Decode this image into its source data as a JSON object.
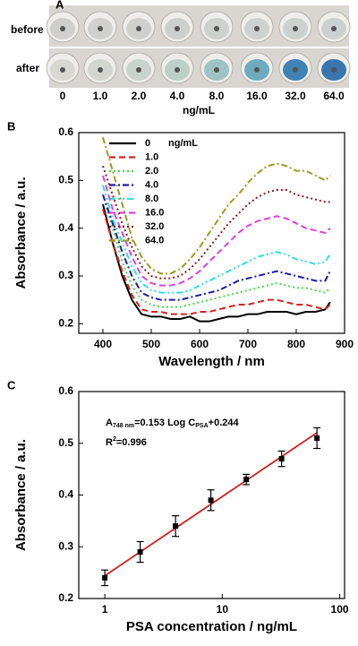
{
  "photo": {
    "panel_label": "A",
    "rows": [
      "before",
      "after"
    ],
    "concentrations": [
      "0",
      "1.0",
      "2.0",
      "4.0",
      "8.0",
      "16.0",
      "32.0",
      "64.0"
    ],
    "unit": "ng/mL"
  },
  "chart_data": [
    {
      "type": "line",
      "panel_label": "B",
      "x_label": "Wavelength / nm",
      "y_label": "Absorbance / a.u.",
      "legend_title": "ng/mL",
      "x": [
        400,
        420,
        440,
        460,
        480,
        500,
        520,
        540,
        560,
        580,
        600,
        620,
        640,
        660,
        680,
        700,
        720,
        740,
        760,
        780,
        800,
        820,
        840,
        860,
        870
      ],
      "xlim": [
        350,
        900
      ],
      "xticks": [
        400,
        500,
        600,
        700,
        800,
        900
      ],
      "ylim": [
        0.18,
        0.6
      ],
      "yticks": [
        0.2,
        0.3,
        0.4,
        0.5,
        0.6
      ],
      "series": [
        {
          "name": "0",
          "color": "#000000",
          "dash": "solid",
          "values": [
            0.45,
            0.37,
            0.3,
            0.25,
            0.22,
            0.215,
            0.215,
            0.21,
            0.21,
            0.215,
            0.205,
            0.205,
            0.21,
            0.215,
            0.215,
            0.22,
            0.22,
            0.225,
            0.225,
            0.225,
            0.22,
            0.225,
            0.225,
            0.23,
            0.245
          ]
        },
        {
          "name": "1.0",
          "color": "#d62020",
          "dash": "dash",
          "values": [
            0.44,
            0.37,
            0.31,
            0.26,
            0.23,
            0.225,
            0.225,
            0.22,
            0.22,
            0.22,
            0.225,
            0.225,
            0.23,
            0.235,
            0.24,
            0.24,
            0.245,
            0.25,
            0.25,
            0.245,
            0.24,
            0.24,
            0.235,
            0.23,
            0.24
          ]
        },
        {
          "name": "2.0",
          "color": "#4cd64c",
          "dash": "dot",
          "values": [
            0.47,
            0.4,
            0.33,
            0.28,
            0.25,
            0.24,
            0.235,
            0.235,
            0.235,
            0.24,
            0.245,
            0.25,
            0.255,
            0.26,
            0.265,
            0.27,
            0.275,
            0.28,
            0.285,
            0.28,
            0.275,
            0.275,
            0.27,
            0.265,
            0.275
          ]
        },
        {
          "name": "4.0",
          "color": "#1a1aa8",
          "dash": "dashdot",
          "values": [
            0.47,
            0.41,
            0.35,
            0.3,
            0.265,
            0.255,
            0.25,
            0.25,
            0.25,
            0.255,
            0.26,
            0.265,
            0.27,
            0.28,
            0.29,
            0.295,
            0.3,
            0.305,
            0.31,
            0.305,
            0.3,
            0.295,
            0.29,
            0.29,
            0.31
          ]
        },
        {
          "name": "8.0",
          "color": "#2ee0e0",
          "dash": "dashdotdot",
          "values": [
            0.49,
            0.42,
            0.37,
            0.32,
            0.285,
            0.27,
            0.265,
            0.265,
            0.265,
            0.27,
            0.28,
            0.29,
            0.3,
            0.31,
            0.32,
            0.33,
            0.34,
            0.345,
            0.35,
            0.345,
            0.335,
            0.33,
            0.325,
            0.33,
            0.345
          ]
        },
        {
          "name": "16.0",
          "color": "#e040e0",
          "dash": "dash",
          "values": [
            0.51,
            0.44,
            0.39,
            0.34,
            0.3,
            0.285,
            0.28,
            0.28,
            0.285,
            0.295,
            0.31,
            0.33,
            0.35,
            0.37,
            0.39,
            0.405,
            0.415,
            0.42,
            0.425,
            0.42,
            0.41,
            0.4,
            0.395,
            0.39,
            0.4
          ]
        },
        {
          "name": "32.0",
          "color": "#8a1a1a",
          "dash": "dot",
          "values": [
            0.53,
            0.47,
            0.41,
            0.36,
            0.32,
            0.3,
            0.295,
            0.295,
            0.3,
            0.315,
            0.335,
            0.36,
            0.385,
            0.41,
            0.43,
            0.45,
            0.465,
            0.475,
            0.48,
            0.48,
            0.47,
            0.465,
            0.46,
            0.455,
            0.455
          ]
        },
        {
          "name": "64.0",
          "color": "#9a9a20",
          "dash": "dashdot",
          "values": [
            0.59,
            0.52,
            0.45,
            0.38,
            0.34,
            0.315,
            0.305,
            0.305,
            0.315,
            0.335,
            0.36,
            0.39,
            0.42,
            0.45,
            0.47,
            0.495,
            0.515,
            0.53,
            0.535,
            0.53,
            0.52,
            0.52,
            0.51,
            0.5,
            0.51
          ]
        }
      ]
    },
    {
      "type": "scatter",
      "panel_label": "C",
      "x_label": "PSA concentration / ng/mL",
      "y_label": "Absorbance / a.u.",
      "x": [
        1,
        2,
        4,
        8,
        16,
        32,
        64
      ],
      "values": [
        0.24,
        0.29,
        0.34,
        0.39,
        0.43,
        0.47,
        0.51
      ],
      "errors": [
        0.015,
        0.02,
        0.02,
        0.02,
        0.01,
        0.015,
        0.02
      ],
      "color": "#000000",
      "fit_color": "#d02020",
      "fit": {
        "slope": 0.153,
        "intercept": 0.244
      },
      "annotation": [
        "A",
        "748 nm",
        "=0.153 Log C",
        "PSA",
        "+0.244"
      ],
      "annotation2": [
        "R",
        "2",
        "=0.996"
      ],
      "xlog": true,
      "xlim": [
        0.6,
        110
      ],
      "xticks": [
        1,
        10,
        100
      ],
      "ylim": [
        0.2,
        0.6
      ],
      "yticks": [
        0.2,
        0.3,
        0.4,
        0.5,
        0.6
      ]
    }
  ]
}
